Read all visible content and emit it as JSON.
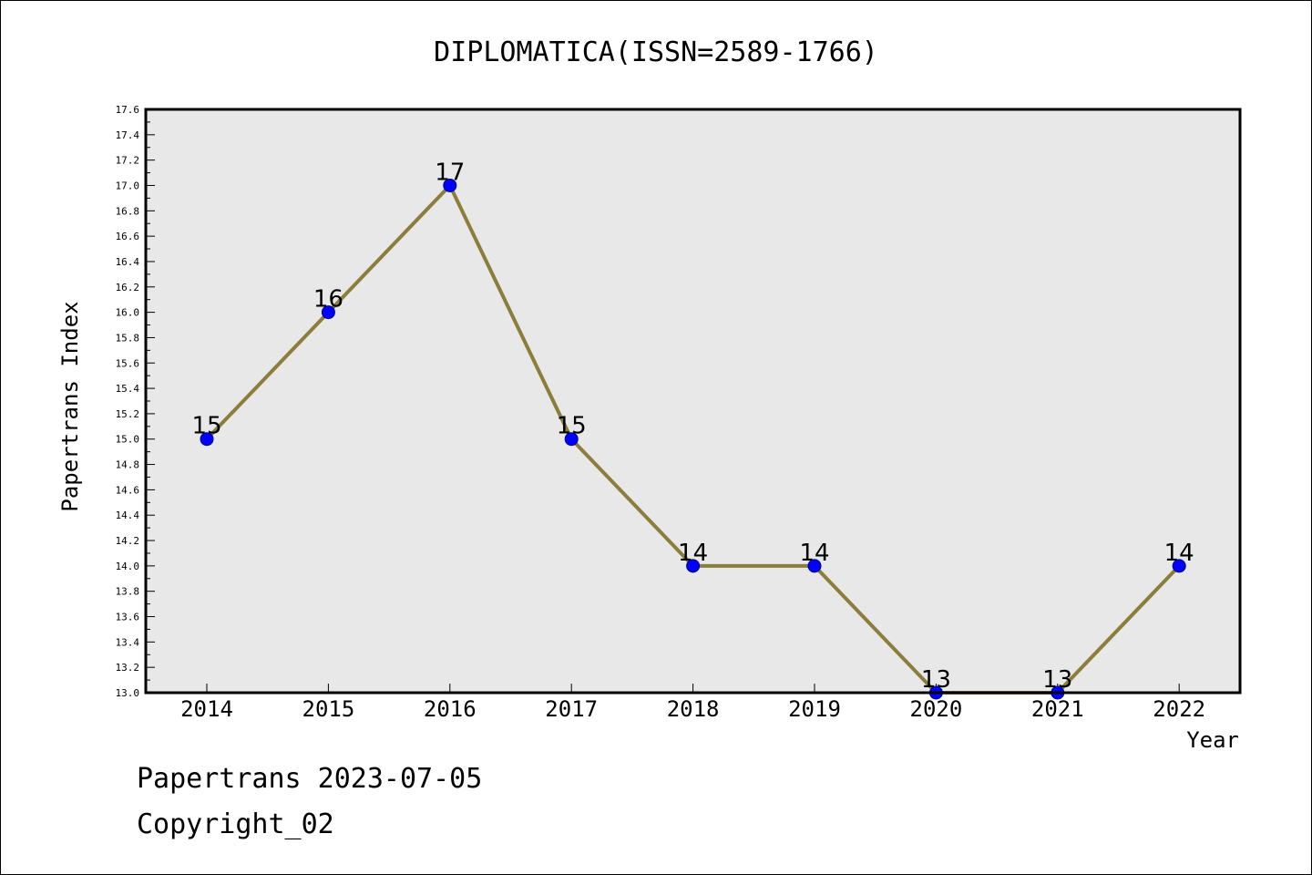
{
  "chart_data": {
    "type": "line",
    "title": "DIPLOMATICA(ISSN=2589-1766)",
    "xlabel": "Year",
    "ylabel": "Papertrans Index",
    "categories": [
      "2014",
      "2015",
      "2016",
      "2017",
      "2018",
      "2019",
      "2020",
      "2021",
      "2022"
    ],
    "values": [
      15,
      16,
      17,
      15,
      14,
      14,
      13,
      13,
      14
    ],
    "ylim": [
      13.0,
      17.6
    ],
    "yticks": [
      "13.0",
      "13.2",
      "13.4",
      "13.6",
      "13.8",
      "14.0",
      "14.2",
      "14.4",
      "14.6",
      "14.8",
      "15.0",
      "15.2",
      "15.4",
      "15.6",
      "15.8",
      "16.0",
      "16.2",
      "16.4",
      "16.6",
      "16.8",
      "17.0",
      "17.2",
      "17.4",
      "17.6"
    ],
    "grid": false,
    "line_color": "#8b7d3a",
    "marker_color": "#0000ff",
    "plot_background": "#e8e8e8"
  },
  "footer": {
    "line1": "Papertrans 2023-07-05",
    "line2": "Copyright_02"
  }
}
